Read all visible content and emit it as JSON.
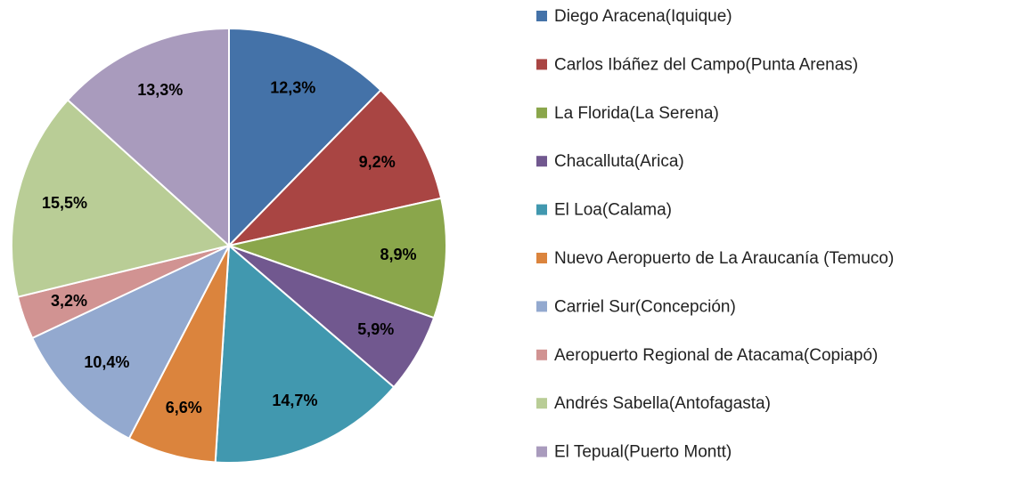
{
  "chart_data": {
    "type": "pie",
    "categories": [
      "Diego Aracena(Iquique)",
      "Carlos Ibáñez del Campo(Punta Arenas)",
      "La Florida(La Serena)",
      "Chacalluta(Arica)",
      "El Loa(Calama)",
      "Nuevo Aeropuerto de La Araucanía (Temuco)",
      "Carriel Sur(Concepción)",
      "Aeropuerto Regional de Atacama(Copiapó)",
      "Andrés Sabella(Antofagasta)",
      "El Tepual(Puerto Montt)"
    ],
    "values": [
      12.3,
      9.2,
      8.9,
      5.9,
      14.7,
      6.6,
      10.4,
      3.2,
      15.5,
      13.3
    ],
    "value_labels": [
      "12,3%",
      "9,2%",
      "8,9%",
      "5,9%",
      "14,7%",
      "6,6%",
      "10,4%",
      "3,2%",
      "15,5%",
      "13,3%"
    ],
    "colors": [
      "#4472a8",
      "#a94543",
      "#8aa64b",
      "#71588f",
      "#4198af",
      "#db843d",
      "#93a9cf",
      "#d19392",
      "#b9cd96",
      "#a99bbd"
    ],
    "legend": "right"
  }
}
